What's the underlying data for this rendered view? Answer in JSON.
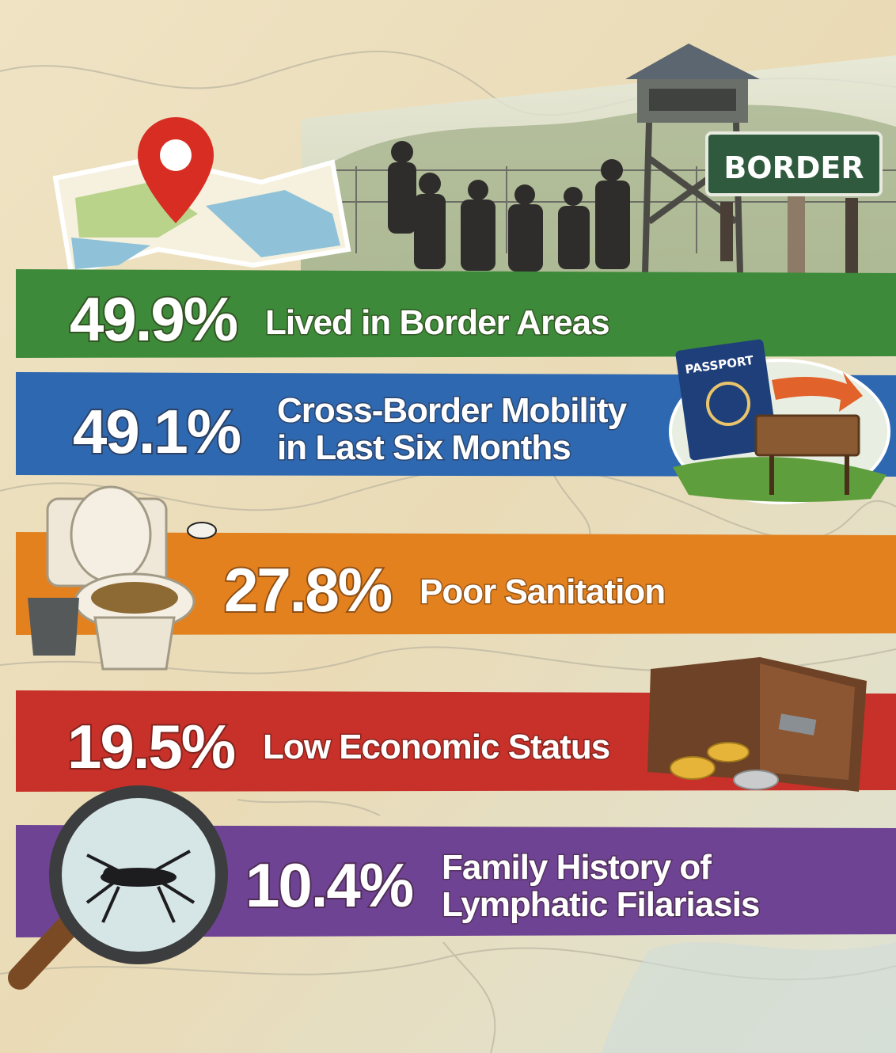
{
  "signs": {
    "border": "BORDER",
    "passport": "PASSPORT"
  },
  "rows": [
    {
      "percent": "49.9%",
      "label": [
        "Lived in Border Areas"
      ]
    },
    {
      "percent": "49.1%",
      "label": [
        "Cross-Border Mobility",
        "in Last Six Months"
      ]
    },
    {
      "percent": "27.8%",
      "label": [
        "Poor Sanitation"
      ]
    },
    {
      "percent": "19.5%",
      "label": [
        "Low Economic Status"
      ]
    },
    {
      "percent": "10.4%",
      "label": [
        "Family History of",
        "Lymphatic Filariasis"
      ]
    }
  ]
}
